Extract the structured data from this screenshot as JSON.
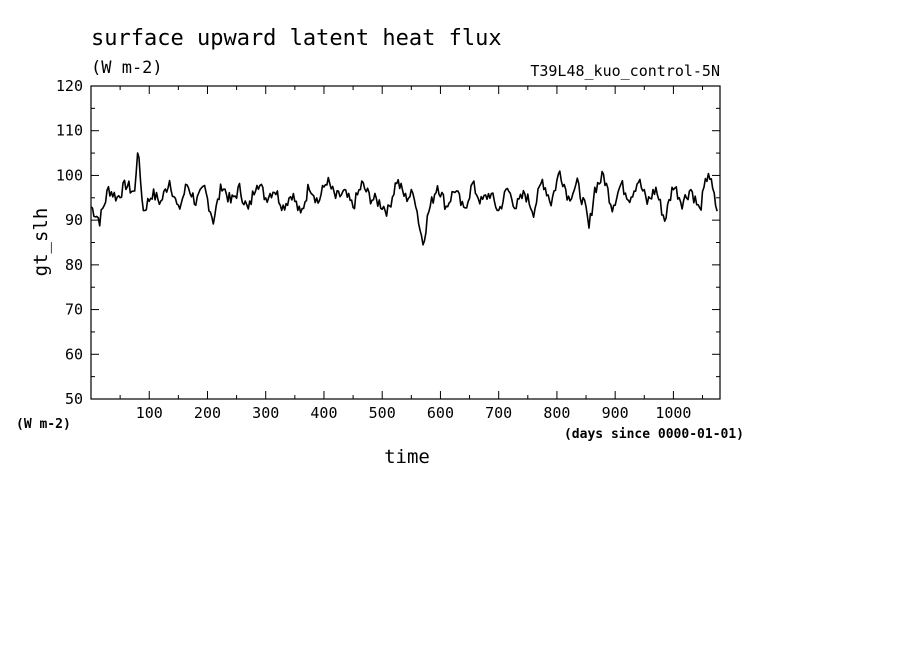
{
  "chart_data": {
    "type": "line",
    "title": "surface upward latent heat flux",
    "subtitle": "(W m-2)",
    "run_label": "T39L48_kuo_control-5N",
    "ylabel": "gt_slh",
    "y_units": "(W m-2)",
    "xlabel": "time",
    "x_units": "(days since 0000-01-01)",
    "ylim": [
      50,
      120
    ],
    "xlim": [
      0,
      1080
    ],
    "yticks": [
      50,
      60,
      70,
      80,
      90,
      100,
      110,
      120
    ],
    "xticks": [
      100,
      200,
      300,
      400,
      500,
      600,
      700,
      800,
      900,
      1000
    ],
    "grid": false,
    "series": [
      {
        "x": [
          0,
          15,
          30,
          45,
          60,
          75,
          80,
          90,
          105,
          120,
          135,
          150,
          165,
          180,
          195,
          210,
          225,
          240,
          255,
          270,
          285,
          300,
          315,
          330,
          345,
          360,
          375,
          390,
          405,
          420,
          435,
          450,
          465,
          480,
          495,
          510,
          525,
          540,
          555,
          565,
          570,
          580,
          595,
          610,
          625,
          640,
          655,
          670,
          685,
          700,
          715,
          730,
          745,
          760,
          775,
          790,
          805,
          820,
          835,
          850,
          855,
          865,
          880,
          895,
          910,
          925,
          940,
          955,
          970,
          985,
          1000,
          1015,
          1030,
          1045,
          1060,
          1075
        ],
        "y": [
          93,
          90,
          97,
          95,
          98,
          96,
          106,
          92,
          96,
          94,
          99,
          92,
          98,
          94,
          97,
          90,
          98,
          94,
          97,
          92,
          99,
          95,
          97,
          93,
          96,
          91,
          98,
          94,
          99,
          95,
          96,
          93,
          98,
          95,
          94,
          92,
          99,
          95,
          96,
          88,
          85,
          92,
          98,
          93,
          97,
          92,
          98,
          94,
          96,
          92,
          97,
          93,
          96,
          92,
          99,
          94,
          101,
          95,
          98,
          92,
          88,
          97,
          100,
          93,
          98,
          95,
          99,
          94,
          97,
          90,
          98,
          94,
          97,
          92,
          101,
          92
        ]
      }
    ]
  }
}
